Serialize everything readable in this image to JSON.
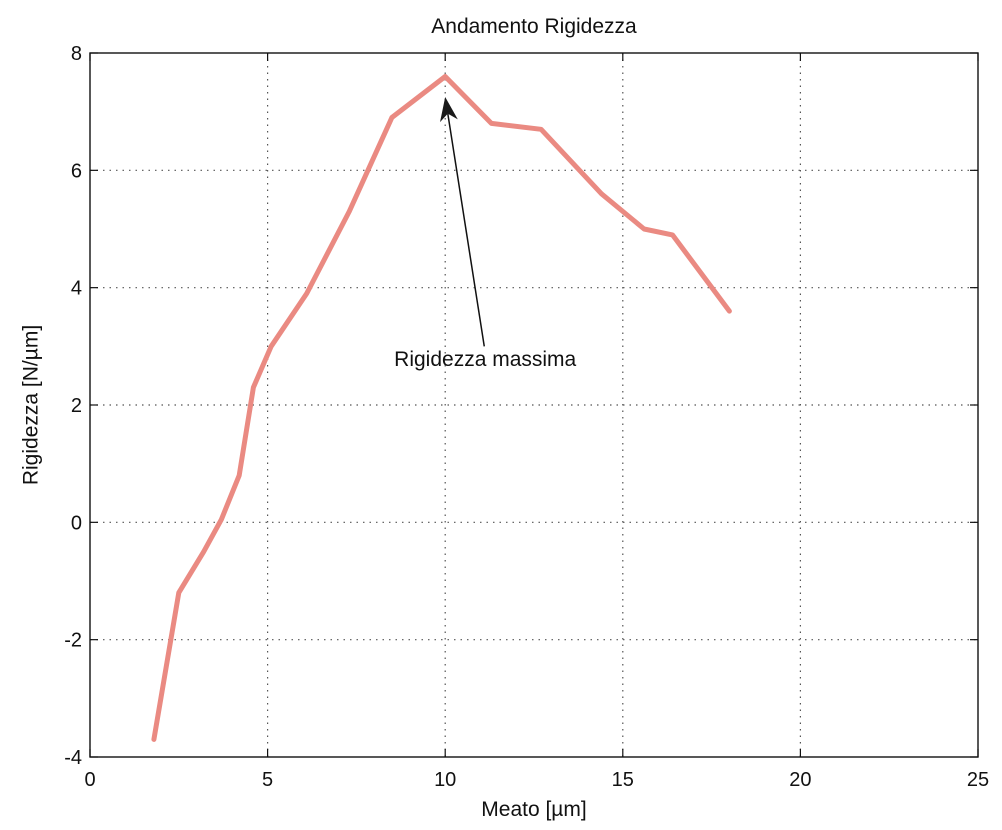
{
  "chart_data": {
    "type": "line",
    "title": "Andamento Rigidezza",
    "xlabel": "Meato [µm]",
    "ylabel": "Rigidezza [N/µm]",
    "xlim": [
      0,
      25
    ],
    "ylim": [
      -4,
      8
    ],
    "xticks": [
      0,
      5,
      10,
      15,
      20,
      25
    ],
    "yticks": [
      -4,
      -2,
      0,
      2,
      4,
      6,
      8
    ],
    "xtick_labels": [
      "0",
      "5",
      "10",
      "15",
      "20",
      "25"
    ],
    "ytick_labels": [
      "-4",
      "-2",
      "0",
      "2",
      "4",
      "6",
      "8"
    ],
    "grid": true,
    "series": [
      {
        "color": "#ea8a82",
        "x": [
          1.8,
          2.5,
          3.2,
          3.7,
          4.2,
          4.6,
          5.1,
          6.1,
          7.3,
          8.5,
          10.0,
          11.3,
          12.7,
          14.4,
          15.6,
          16.4,
          18.0
        ],
        "y": [
          -3.7,
          -1.2,
          -0.5,
          0.05,
          0.8,
          2.3,
          3.0,
          3.9,
          5.3,
          6.9,
          7.6,
          6.8,
          6.7,
          5.6,
          5.0,
          4.9,
          3.6
        ]
      }
    ],
    "annotations": [
      {
        "text": "Rigidezza massima",
        "text_x": 10.0,
        "text_y": 2.8,
        "arrow_from_x": 11.1,
        "arrow_from_y": 3.0,
        "arrow_to_x": 10.0,
        "arrow_to_y": 7.25
      }
    ]
  }
}
